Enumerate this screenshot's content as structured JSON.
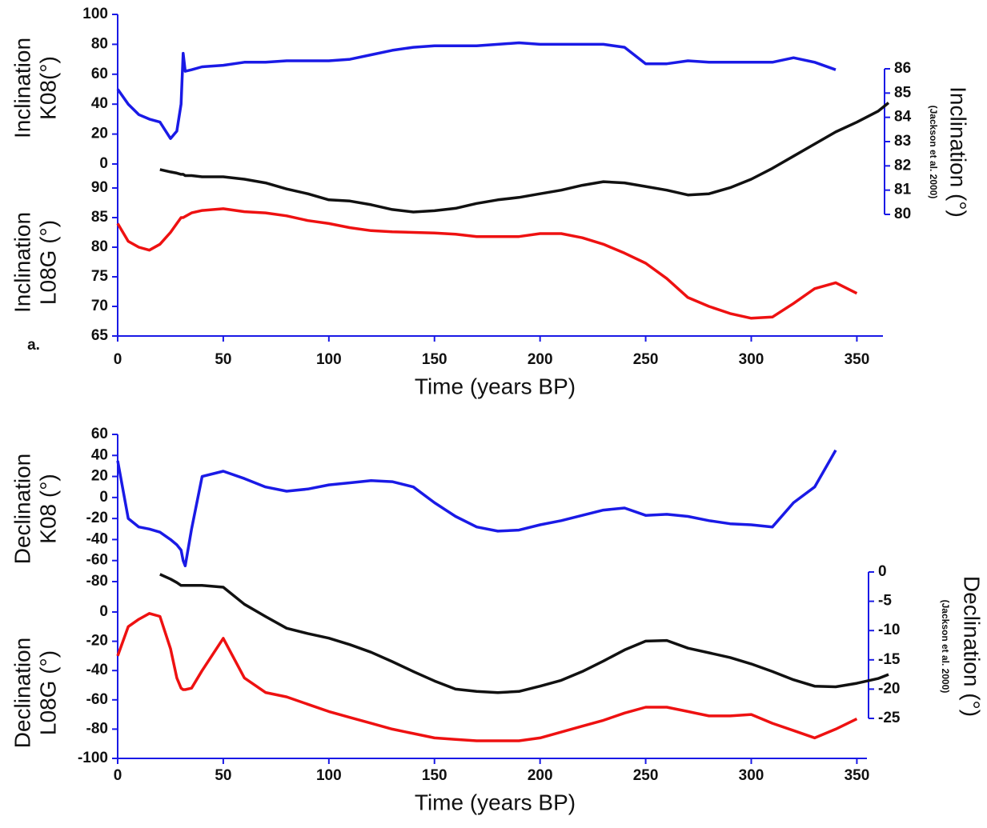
{
  "chart_data": [
    {
      "type": "line",
      "panel_label": "a.",
      "xlabel": "Time (years BP)",
      "x": [
        0,
        5,
        10,
        15,
        20,
        25,
        28,
        30,
        31,
        32,
        35,
        40,
        50,
        60,
        70,
        80,
        90,
        100,
        110,
        120,
        130,
        140,
        150,
        160,
        170,
        180,
        190,
        200,
        210,
        220,
        230,
        240,
        250,
        260,
        270,
        280,
        290,
        300,
        310,
        320,
        330,
        340,
        350,
        360,
        365
      ],
      "xlim": [
        0,
        365
      ],
      "xticks": [
        0,
        50,
        100,
        150,
        200,
        250,
        300,
        350
      ],
      "ylabel": [
        "Inclination",
        "K08(°)"
      ],
      "ylim": [
        0,
        100
      ],
      "yticks": [
        0,
        20,
        40,
        60,
        80,
        100
      ],
      "y3label": [
        "Inclination",
        "L08G (°)"
      ],
      "y3lim": [
        65,
        90
      ],
      "y3ticks": [
        65,
        70,
        75,
        80,
        85,
        90
      ],
      "y2label": [
        "Inclination (°)",
        "(Jackson et al. 2000)"
      ],
      "y2lim": [
        80,
        86
      ],
      "y2ticks": [
        80,
        81,
        82,
        83,
        84,
        85,
        86
      ],
      "series": [
        {
          "color": "#1a1ae6",
          "axis": "y",
          "values": [
            50,
            40,
            33,
            30,
            28,
            17,
            22,
            40,
            74,
            62,
            63,
            65,
            66,
            68,
            68,
            69,
            69,
            69,
            70,
            73,
            76,
            78,
            79,
            79,
            79,
            80,
            81,
            80,
            80,
            80,
            80,
            78,
            67,
            67,
            69,
            68,
            68,
            68,
            68,
            71,
            68,
            63,
            null,
            null,
            null
          ]
        },
        {
          "color": "#111111",
          "axis": "y2",
          "values": [
            null,
            null,
            null,
            null,
            81.85,
            81.75,
            81.7,
            81.65,
            81.65,
            81.6,
            81.6,
            81.55,
            81.55,
            81.45,
            81.3,
            81.05,
            80.85,
            80.6,
            80.55,
            80.4,
            80.2,
            80.1,
            80.15,
            80.25,
            80.45,
            80.6,
            80.7,
            80.85,
            81.0,
            81.2,
            81.35,
            81.3,
            81.15,
            81.0,
            80.8,
            80.85,
            81.1,
            81.45,
            81.9,
            82.4,
            82.9,
            83.4,
            83.8,
            84.25,
            84.6
          ]
        },
        {
          "color": "#ee1111",
          "axis": "y3",
          "values": [
            84,
            81,
            80,
            79.5,
            80.5,
            82.5,
            84,
            85,
            85,
            85.2,
            85.8,
            86.2,
            86.5,
            86,
            85.8,
            85.3,
            84.5,
            84,
            83.3,
            82.8,
            82.6,
            82.5,
            82.4,
            82.2,
            81.8,
            81.8,
            81.8,
            82.3,
            82.3,
            81.6,
            80.5,
            79,
            77.3,
            74.7,
            71.5,
            70,
            68.8,
            68,
            68.2,
            70.5,
            73,
            74,
            72.2,
            null,
            null
          ]
        }
      ]
    },
    {
      "type": "line",
      "xlabel": "Time (years BP)",
      "x": [
        0,
        5,
        10,
        15,
        20,
        25,
        28,
        30,
        31,
        32,
        35,
        40,
        50,
        60,
        70,
        80,
        90,
        100,
        110,
        120,
        130,
        140,
        150,
        160,
        170,
        180,
        190,
        200,
        210,
        220,
        230,
        240,
        250,
        260,
        270,
        280,
        290,
        300,
        310,
        320,
        330,
        340,
        350,
        360,
        365
      ],
      "xlim": [
        0,
        365
      ],
      "xticks": [
        0,
        50,
        100,
        150,
        200,
        250,
        300,
        350
      ],
      "ylabel": [
        "Declination",
        "K08 (°)"
      ],
      "ylim": [
        -80,
        60
      ],
      "yticks": [
        -80,
        -60,
        -40,
        -20,
        0,
        20,
        40,
        60
      ],
      "y3label": [
        "Declination",
        "L08G (°)"
      ],
      "y3lim": [
        -100,
        0
      ],
      "y3ticks": [
        -100,
        -80,
        -60,
        -40,
        -20,
        0
      ],
      "y2label": [
        "Declination (°)",
        "(Jackson et al. 2000)"
      ],
      "y2lim": [
        -25,
        0
      ],
      "y2ticks": [
        -25,
        -20,
        -15,
        -10,
        -5,
        0
      ],
      "series": [
        {
          "color": "#1a1ae6",
          "axis": "y",
          "values": [
            35,
            -20,
            -28,
            -30,
            -33,
            -40,
            -45,
            -50,
            -60,
            -65,
            -30,
            20,
            25,
            18,
            10,
            6,
            8,
            12,
            14,
            16,
            15,
            10,
            -5,
            -18,
            -28,
            -32,
            -31,
            -26,
            -22,
            -17,
            -12,
            -10,
            -17,
            -16,
            -18,
            -22,
            -25,
            -26,
            -28,
            -5,
            10,
            45,
            null,
            null,
            null
          ]
        },
        {
          "color": "#111111",
          "axis": "y2",
          "values": [
            null,
            null,
            null,
            null,
            -0.4,
            -1.2,
            -1.8,
            -2.3,
            -2.3,
            -2.3,
            -2.3,
            -2.3,
            -2.6,
            -5.5,
            -7.6,
            -9.6,
            -10.5,
            -11.3,
            -12.4,
            -13.7,
            -15.3,
            -17,
            -18.6,
            -20,
            -20.4,
            -20.6,
            -20.4,
            -19.5,
            -18.5,
            -17,
            -15.2,
            -13.3,
            -11.8,
            -11.7,
            -13,
            -13.8,
            -14.6,
            -15.7,
            -17,
            -18.4,
            -19.5,
            -19.6,
            -19,
            -18.2,
            -17.5
          ]
        },
        {
          "color": "#ee1111",
          "axis": "y3",
          "values": [
            -30,
            -10,
            -5,
            -1,
            -3,
            -25,
            -45,
            -52,
            -53,
            -53,
            -52,
            -40,
            -18,
            -45,
            -55,
            -58,
            -63,
            -68,
            -72,
            -76,
            -80,
            -83,
            -86,
            -87,
            -88,
            -88,
            -88,
            -86,
            -82,
            -78,
            -74,
            -69,
            -65,
            -65,
            -68,
            -71,
            -71,
            -70,
            -76,
            -81,
            -86,
            -80,
            -73,
            null,
            null
          ]
        }
      ]
    }
  ]
}
